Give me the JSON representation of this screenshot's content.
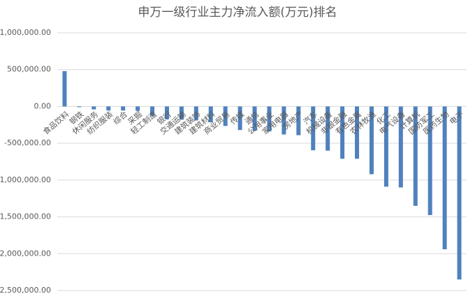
{
  "chart_data": {
    "type": "bar",
    "title": "申万一级行业主力净流入额(万元)排名",
    "categories": [
      "食品饮料",
      "钢铁",
      "休闲服务",
      "纺织服装",
      "综合",
      "采掘",
      "轻工制造",
      "银行",
      "交通运输",
      "建筑装饰",
      "建筑材料",
      "商业贸易",
      "传媒",
      "通信",
      "公用事业",
      "家用电器",
      "房地产",
      "汽车",
      "机械设备",
      "非银金融",
      "有色金属",
      "农林牧渔",
      "化工",
      "电气设备",
      "计算机",
      "国防军工",
      "医药生物",
      "电子"
    ],
    "values": [
      480000,
      -10000,
      -40000,
      -55000,
      -55000,
      -60000,
      -130000,
      -175000,
      -180000,
      -190000,
      -215000,
      -265000,
      -320000,
      -330000,
      -340000,
      -380000,
      -390000,
      -595000,
      -600000,
      -710000,
      -710000,
      -920000,
      -1090000,
      -1100000,
      -1350000,
      -1475000,
      -1940000,
      -2350000
    ],
    "color": "#4f81bd",
    "ylim": [
      -2500000,
      1000000
    ],
    "yticks": [
      {
        "value": -2500000,
        "label": "-2,500,000.00"
      },
      {
        "value": -2000000,
        "label": "-2,000,000.00"
      },
      {
        "value": -1500000,
        "label": "-1,500,000.00"
      },
      {
        "value": -1000000,
        "label": "-1,000,000.00"
      },
      {
        "value": -500000,
        "label": "-500,000.00"
      },
      {
        "value": 0,
        "label": "0.00"
      },
      {
        "value": 500000,
        "label": "500,000.00"
      },
      {
        "value": 1000000,
        "label": "1,000,000.00"
      }
    ],
    "grid": true
  }
}
